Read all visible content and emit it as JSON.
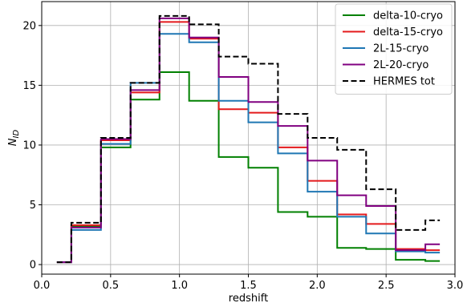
{
  "chart_data": {
    "type": "line",
    "drawstyle": "steps-mid",
    "xlabel": "redshift",
    "ylabel_main": "N",
    "ylabel_sub": "ID",
    "xlim": [
      0.0,
      3.0
    ],
    "ylim": [
      -0.8,
      22.0
    ],
    "xticks": [
      0.0,
      0.5,
      1.0,
      1.5,
      2.0,
      2.5,
      3.0
    ],
    "xtick_labels": [
      "0.0",
      "0.5",
      "1.0",
      "1.5",
      "2.0",
      "2.5",
      "3.0"
    ],
    "yticks": [
      0,
      5,
      10,
      15,
      20
    ],
    "ytick_labels": [
      "0",
      "5",
      "10",
      "15",
      "20"
    ],
    "grid": true,
    "legend_position": "top-right",
    "x": [
      0.11,
      0.32,
      0.54,
      0.75,
      0.96,
      1.18,
      1.39,
      1.61,
      1.82,
      2.04,
      2.25,
      2.46,
      2.68,
      2.89
    ],
    "series": [
      {
        "name": "delta-10-cryo",
        "color": "#008000",
        "dashed": false,
        "values": [
          0.2,
          3.2,
          9.8,
          13.8,
          16.1,
          13.7,
          9.0,
          8.1,
          4.4,
          4.0,
          1.4,
          1.3,
          0.4,
          0.3
        ]
      },
      {
        "name": "delta-15-cryo",
        "color": "#e41a1c",
        "dashed": false,
        "values": [
          0.2,
          3.3,
          10.4,
          14.4,
          20.3,
          18.9,
          13.0,
          12.7,
          9.8,
          7.0,
          4.2,
          3.4,
          1.3,
          1.2
        ]
      },
      {
        "name": "2L-15-cryo",
        "color": "#1f77b4",
        "dashed": false,
        "values": [
          0.2,
          2.9,
          10.1,
          15.2,
          19.3,
          18.6,
          13.7,
          11.9,
          9.3,
          6.1,
          4.0,
          2.6,
          1.1,
          1.0
        ]
      },
      {
        "name": "2L-20-cryo",
        "color": "#800080",
        "dashed": false,
        "values": [
          0.2,
          3.1,
          10.5,
          14.6,
          20.6,
          19.0,
          15.7,
          13.6,
          11.6,
          8.7,
          5.8,
          4.9,
          1.2,
          1.7
        ]
      },
      {
        "name": "HERMES tot",
        "color": "#000000",
        "dashed": true,
        "values": [
          0.2,
          3.5,
          10.6,
          15.2,
          20.8,
          20.1,
          17.4,
          16.8,
          12.6,
          10.6,
          9.6,
          6.3,
          2.9,
          3.7
        ]
      }
    ]
  }
}
